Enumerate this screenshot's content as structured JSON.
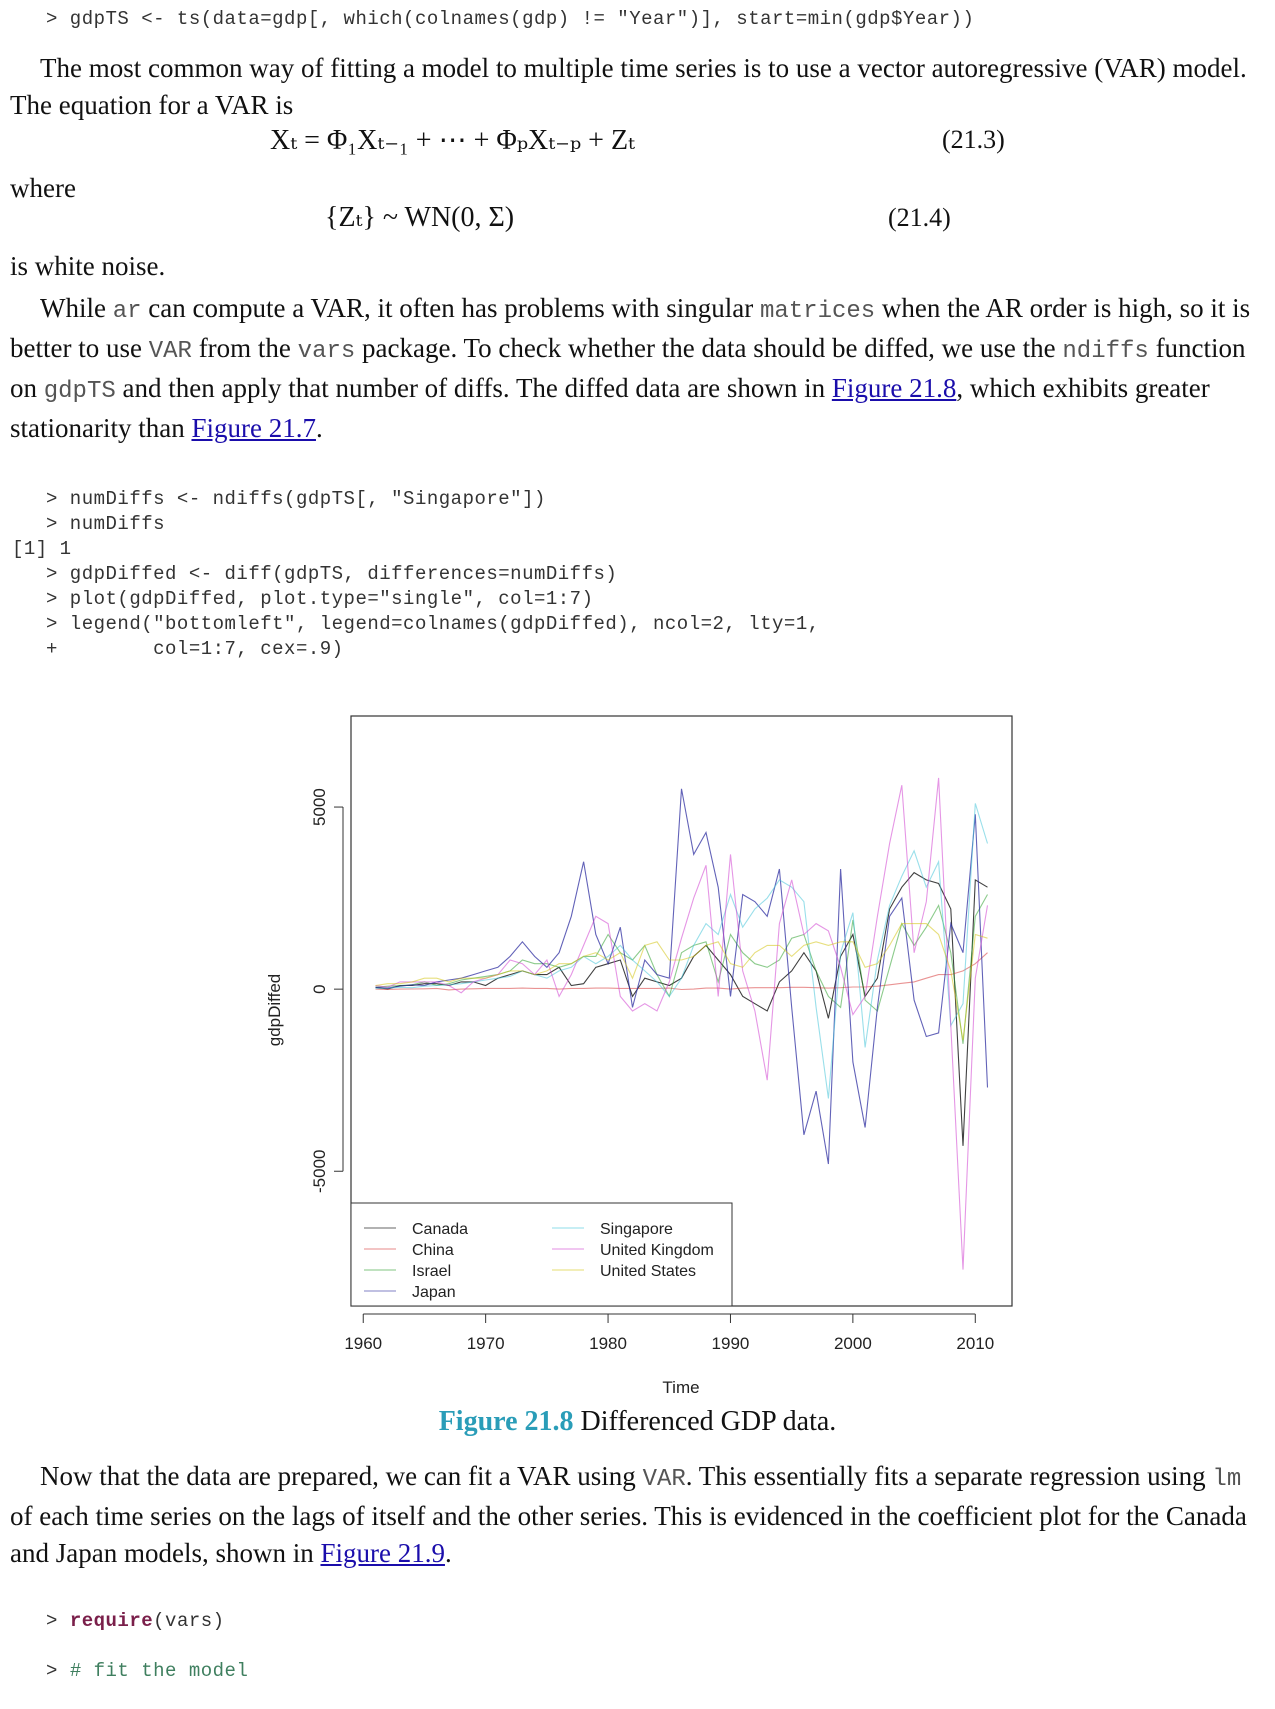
{
  "code_top": "> gdpTS <- ts(data=gdp[, which(colnames(gdp) != \"Year\")], start=min(gdp$Year))",
  "paragraph1": "The most common way of fitting a model to multiple time series is to use a vector autoregressive (VAR) model. The equation for a VAR is",
  "equation1": {
    "lhs": "X",
    "text": "Xₜ = Φ₁Xₜ₋₁ + ⋯ + ΦₚXₜ₋ₚ + Zₜ",
    "number": "(21.3)"
  },
  "where_label": "where",
  "equation2": {
    "text": "{Zₜ} ~ WN(0, Σ)",
    "number": "(21.4)"
  },
  "white_noise_text": "is white noise.",
  "paragraph2": {
    "t1": "While ",
    "m1": "ar",
    "t2": " can compute a VAR, it often has problems with singular ",
    "m2": "matrices",
    "t3": " when the AR order is high, so it is better to use ",
    "m3": "VAR",
    "t4": " from the ",
    "m4": "vars",
    "t5": " package. To check whether the data should be diffed, we use the ",
    "m5": "ndiffs",
    "t6": " function on ",
    "m6": "gdpTS",
    "t7": " and then apply that number of diffs. The diffed data are shown in ",
    "link1": "Figure 21.8",
    "t8": ", which exhibits greater stationarity than ",
    "link2": "Figure 21.7",
    "t9": "."
  },
  "code_mid": [
    "> numDiffs <- ndiffs(gdpTS[, \"Singapore\"])",
    "> numDiffs",
    "",
    "[1] 1",
    "",
    "> gdpDiffed <- diff(gdpTS, differences=numDiffs)",
    "> plot(gdpDiffed, plot.type=\"single\", col=1:7)",
    "> legend(\"bottomleft\", legend=colnames(gdpDiffed), ncol=2, lty=1,",
    "+        col=1:7, cex=.9)"
  ],
  "chart_data": {
    "type": "line",
    "title": "",
    "xlabel": "Time",
    "ylabel": "gdpDiffed",
    "xlim": [
      1959,
      2013
    ],
    "ylim": [
      -8700,
      7500
    ],
    "x_ticks": [
      1960,
      1970,
      1980,
      1990,
      2000,
      2010
    ],
    "y_ticks": [
      -5000,
      0,
      5000
    ],
    "legend_position": "bottom-left",
    "grid": false,
    "x": [
      1961,
      1962,
      1963,
      1964,
      1965,
      1966,
      1967,
      1968,
      1969,
      1970,
      1971,
      1972,
      1973,
      1974,
      1975,
      1976,
      1977,
      1978,
      1979,
      1980,
      1981,
      1982,
      1983,
      1984,
      1985,
      1986,
      1987,
      1988,
      1989,
      1990,
      1991,
      1992,
      1993,
      1994,
      1995,
      1996,
      1997,
      1998,
      1999,
      2000,
      2001,
      2002,
      2003,
      2004,
      2005,
      2006,
      2007,
      2008,
      2009,
      2010,
      2011
    ],
    "series": [
      {
        "name": "Canada",
        "color": "#000000",
        "values": [
          50,
          0,
          100,
          100,
          150,
          150,
          100,
          200,
          200,
          100,
          300,
          400,
          500,
          400,
          400,
          600,
          100,
          150,
          600,
          700,
          800,
          -200,
          300,
          200,
          100,
          300,
          900,
          1200,
          800,
          400,
          -200,
          -400,
          -600,
          200,
          500,
          1000,
          500,
          -800,
          900,
          1500,
          -200,
          300,
          2200,
          2800,
          3200,
          3000,
          2900,
          2200,
          -4300,
          3000,
          2800
        ]
      },
      {
        "name": "China",
        "color": "#d73a3a",
        "values": [
          0,
          -10,
          0,
          5,
          10,
          20,
          -20,
          0,
          10,
          20,
          20,
          20,
          30,
          20,
          20,
          0,
          20,
          20,
          30,
          30,
          20,
          20,
          20,
          20,
          30,
          -10,
          0,
          30,
          30,
          0,
          30,
          40,
          40,
          40,
          50,
          50,
          40,
          30,
          40,
          60,
          60,
          80,
          120,
          160,
          200,
          300,
          400,
          400,
          500,
          700,
          1000
        ]
      },
      {
        "name": "Israel",
        "color": "#2ea02e",
        "values": [
          50,
          80,
          100,
          120,
          200,
          100,
          150,
          250,
          300,
          350,
          400,
          500,
          800,
          700,
          700,
          600,
          700,
          900,
          900,
          1500,
          1000,
          800,
          1200,
          400,
          -200,
          1000,
          1200,
          1300,
          200,
          1500,
          1000,
          700,
          600,
          800,
          1400,
          1500,
          500,
          -200,
          -500,
          1900,
          -300,
          -600,
          600,
          1800,
          1200,
          1700,
          2300,
          1000,
          -1500,
          2000,
          2600
        ]
      },
      {
        "name": "Japan",
        "color": "#2e2ea0",
        "values": [
          50,
          30,
          80,
          120,
          100,
          200,
          250,
          300,
          400,
          500,
          600,
          900,
          1300,
          900,
          600,
          1000,
          2000,
          3500,
          1500,
          700,
          1700,
          -500,
          800,
          400,
          300,
          5500,
          3700,
          4300,
          2800,
          -200,
          2600,
          2400,
          2000,
          3300,
          -500,
          -4000,
          -2800,
          -4800,
          3300,
          -2000,
          -3800,
          -500,
          2000,
          2500,
          -300,
          -1300,
          -1200,
          1800,
          1000,
          4800,
          -2700
        ]
      },
      {
        "name": "Singapore",
        "color": "#45c4d8",
        "values": [
          20,
          30,
          50,
          40,
          80,
          100,
          120,
          150,
          200,
          250,
          300,
          350,
          500,
          400,
          300,
          500,
          600,
          900,
          700,
          900,
          1200,
          800,
          500,
          200,
          -200,
          300,
          1200,
          1800,
          1500,
          2600,
          1700,
          2200,
          2500,
          3000,
          2800,
          2400,
          -500,
          -3000,
          1000,
          2100,
          -1600,
          800,
          2300,
          3100,
          3800,
          2800,
          3500,
          -1000,
          -400,
          5100,
          4000
        ]
      },
      {
        "name": "United Kingdom",
        "color": "#d040d0",
        "values": [
          100,
          50,
          200,
          200,
          200,
          200,
          100,
          -100,
          200,
          300,
          400,
          800,
          700,
          400,
          800,
          -200,
          400,
          1200,
          2000,
          1800,
          -200,
          -600,
          -400,
          -600,
          200,
          1400,
          2500,
          3400,
          -200,
          3700,
          500,
          -600,
          -2500,
          1800,
          3000,
          1500,
          1800,
          1600,
          600,
          -700,
          -200,
          2000,
          4000,
          5600,
          1000,
          2400,
          5800,
          -1000,
          -7700,
          300,
          2300
        ]
      },
      {
        "name": "United States",
        "color": "#d4c414",
        "values": [
          100,
          150,
          150,
          200,
          300,
          300,
          200,
          300,
          300,
          300,
          400,
          500,
          500,
          400,
          500,
          700,
          700,
          900,
          1000,
          800,
          1000,
          300,
          1200,
          1300,
          800,
          800,
          900,
          1200,
          1300,
          700,
          600,
          1000,
          1200,
          1200,
          900,
          1200,
          1300,
          1200,
          1300,
          1300,
          600,
          700,
          1200,
          1800,
          1800,
          1800,
          1500,
          500,
          -1400,
          1500,
          1400
        ]
      }
    ]
  },
  "legend_entries": [
    "Canada",
    "China",
    "Israel",
    "Japan",
    "Singapore",
    "United Kingdom",
    "United States"
  ],
  "figure_caption": {
    "label": "Figure 21.8",
    "text": "Differenced GDP data."
  },
  "paragraph3": {
    "t1": "Now that the data are prepared, we can fit a VAR using ",
    "m1": "VAR",
    "t2": ". This essentially fits a separate regression using ",
    "m2": "lm",
    "t3": " of each time series on the lags of itself and the other series. This is evidenced in the coefficient plot for the Canada and Japan models, shown in ",
    "link1": "Figure 21.9",
    "t4": "."
  },
  "code_bottom": {
    "line1_prompt": "> ",
    "line1_kw": "require",
    "line1_rest": "(vars)",
    "line2_prompt": "> ",
    "line2_comment": "# fit the model"
  }
}
